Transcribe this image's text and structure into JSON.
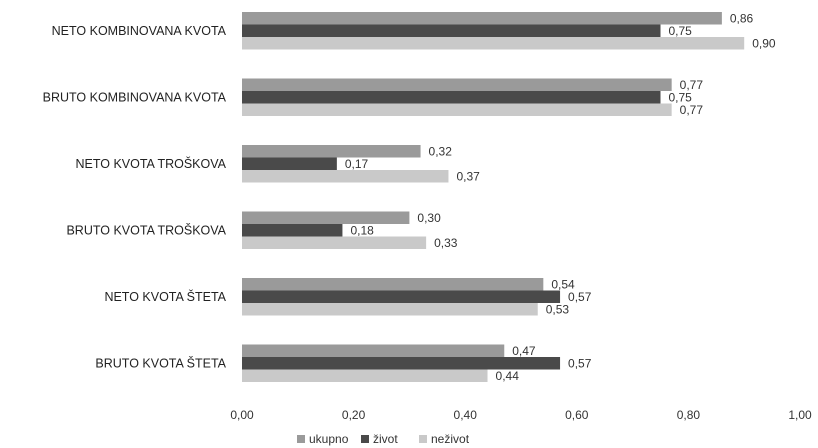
{
  "chart_data": {
    "type": "bar",
    "orientation": "horizontal",
    "categories": [
      "NETO KOMBINOVANA KVOTA",
      "BRUTO KOMBINOVANA KVOTA",
      "NETO KVOTA TROŠKOVA",
      "BRUTO KVOTA TROŠKOVA",
      "NETO KVOTA ŠTETA",
      "BRUTO KVOTA ŠTETA"
    ],
    "series": [
      {
        "name": "ukupno",
        "color": "#9a9a9a",
        "values": [
          0.86,
          0.77,
          0.32,
          0.3,
          0.54,
          0.47
        ],
        "labels": [
          "0,86",
          "0,77",
          "0,32",
          "0,30",
          "0,54",
          "0,47"
        ]
      },
      {
        "name": "život",
        "color": "#4a4a4a",
        "values": [
          0.75,
          0.75,
          0.17,
          0.18,
          0.57,
          0.57
        ],
        "labels": [
          "0,75",
          "0,75",
          "0,17",
          "0,18",
          "0,57",
          "0,57"
        ]
      },
      {
        "name": "neživot",
        "color": "#c9c9c9",
        "values": [
          0.9,
          0.77,
          0.37,
          0.33,
          0.53,
          0.44
        ],
        "labels": [
          "0,90",
          "0,77",
          "0,37",
          "0,33",
          "0,53",
          "0,44"
        ]
      }
    ],
    "xlim": [
      0,
      1
    ],
    "xticks": [
      "0,00",
      "0,20",
      "0,40",
      "0,60",
      "0,80",
      "1,00"
    ],
    "grid": false,
    "legend_position": "bottom"
  }
}
